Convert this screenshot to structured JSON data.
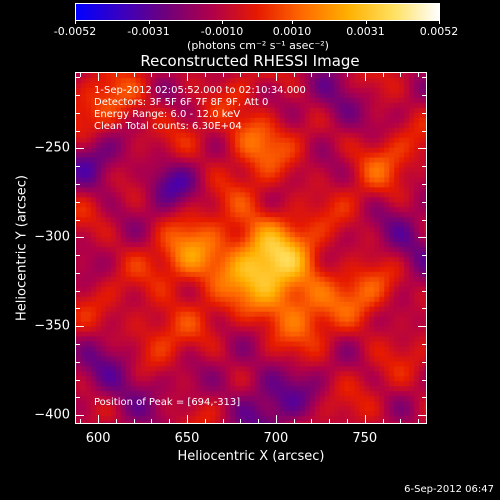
{
  "colorbar": {
    "tick_labels": [
      "-0.0052",
      "-0.0031",
      "-0.0010",
      "0.0010",
      "0.0031",
      "0.0052"
    ],
    "tick_values": [
      -0.0052,
      -0.0031,
      -0.001,
      0.001,
      0.0031,
      0.0052
    ],
    "range": [
      -0.0052,
      0.0052
    ],
    "units": "(photons cm⁻² s⁻¹ asec⁻²)",
    "colormap": [
      "#0000ff",
      "#3a00c0",
      "#70007a",
      "#b0004a",
      "#e61a00",
      "#ff6a00",
      "#ffb000",
      "#ffe060",
      "#ffffff"
    ]
  },
  "title": "Reconstructed RHESSI Image",
  "annotations": {
    "time_range": "1-Sep-2012 02:05:52.000 to 02:10:34.000",
    "detectors": "Detectors: 3F 5F 6F 7F 8F 9F, Att 0",
    "energy_range": "Energy Range: 6.0 - 12.0 keV",
    "clean_counts": "Clean    Total counts: 6.30E+04",
    "peak": "Position of Peak = [694,-313]"
  },
  "chart_data": {
    "type": "heatmap",
    "title": "Reconstructed RHESSI Image",
    "xlabel": "Heliocentric X (arcsec)",
    "ylabel": "Heliocentric Y (arcsec)",
    "xlim": [
      587,
      785
    ],
    "ylim": [
      -405,
      -207
    ],
    "x_ticks": [
      600,
      650,
      700,
      750
    ],
    "y_ticks": [
      -250,
      -300,
      -350,
      -400
    ],
    "x_tick_labels": [
      "600",
      "650",
      "700",
      "750"
    ],
    "y_tick_labels": [
      "-250",
      "-300",
      "-350",
      "-400"
    ],
    "peak_position": [
      694,
      -313
    ],
    "colorbar_range": [
      -0.0052,
      0.0052
    ]
  },
  "footer": "6-Sep-2012 06:47"
}
